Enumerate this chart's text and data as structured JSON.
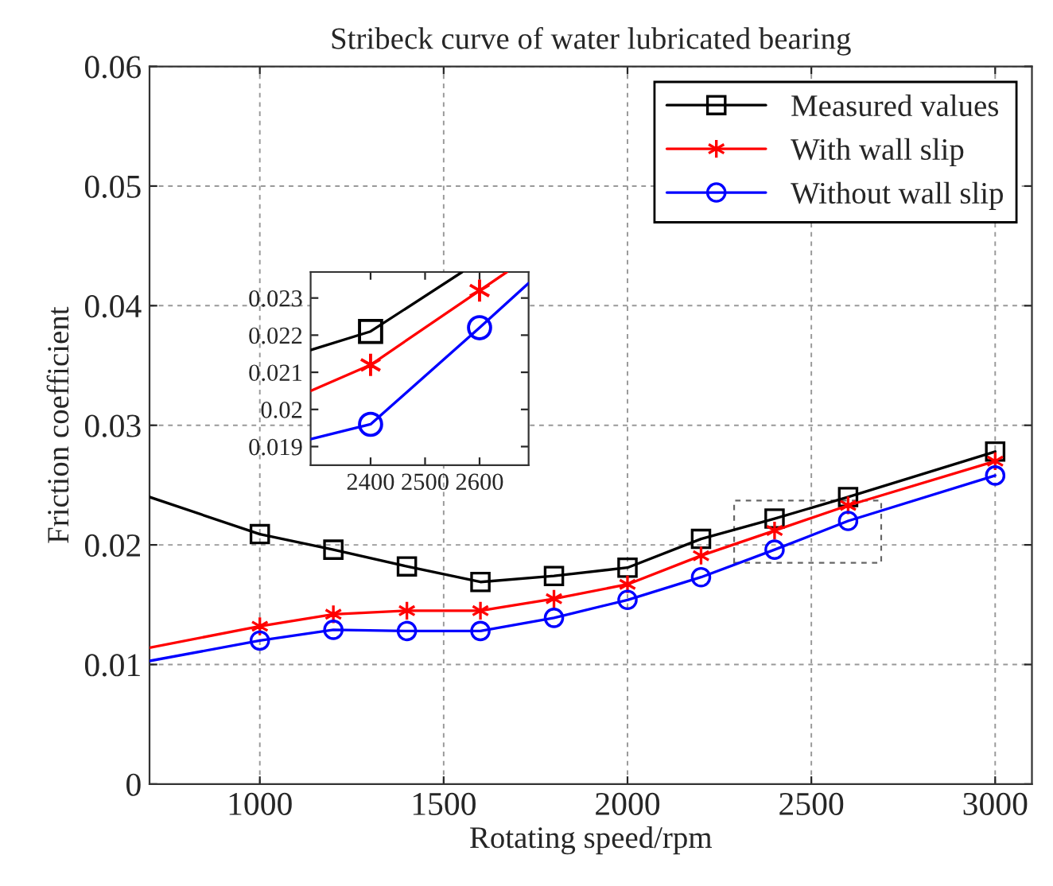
{
  "chart_data": [
    {
      "type": "line",
      "title": "Stribeck curve of water lubricated bearing",
      "xlabel": "Rotating speed/rpm",
      "ylabel": "Friction coefficient",
      "xlim": [
        700,
        3100
      ],
      "ylim": [
        0,
        0.06
      ],
      "xticks": [
        1000,
        1500,
        2000,
        2500,
        3000
      ],
      "yticks": [
        0,
        0.01,
        0.02,
        0.03,
        0.04,
        0.05,
        0.06
      ],
      "grid": true,
      "legend": "top right",
      "line_style": "solid",
      "series": [
        {
          "name": "Measured values",
          "color": "#000000",
          "marker": "square",
          "x": [
            1000,
            1200,
            1400,
            1600,
            1800,
            2000,
            2200,
            2400,
            2600,
            3000
          ],
          "values": [
            0.0209,
            0.0196,
            0.0182,
            0.0169,
            0.0174,
            0.0181,
            0.0205,
            0.0222,
            0.024,
            0.0278
          ]
        },
        {
          "name": "With wall slip",
          "color": "#ff0000",
          "marker": "cross",
          "x": [
            1000,
            1200,
            1400,
            1600,
            1800,
            2000,
            2200,
            2400,
            2600,
            3000
          ],
          "values": [
            0.0132,
            0.0142,
            0.0145,
            0.0145,
            0.0155,
            0.0167,
            0.0191,
            0.0212,
            0.0233,
            0.027
          ]
        },
        {
          "name": "Without wall slip",
          "color": "#0000ff",
          "marker": "circle",
          "x": [
            1000,
            1200,
            1400,
            1600,
            1800,
            2000,
            2200,
            2400,
            2600,
            3000
          ],
          "values": [
            0.012,
            0.0129,
            0.0128,
            0.0128,
            0.0139,
            0.0154,
            0.0173,
            0.0196,
            0.022,
            0.0258
          ]
        },
        {
          "color": "#000000",
          "marker": "none",
          "x": [
            700,
            1000
          ],
          "values": [
            0.024,
            0.0209
          ]
        },
        {
          "color": "#ff0000",
          "marker": "none",
          "x": [
            700,
            1000
          ],
          "values": [
            0.0114,
            0.0132
          ]
        },
        {
          "color": "#0000ff",
          "marker": "none",
          "x": [
            700,
            1000
          ],
          "values": [
            0.0103,
            0.012
          ]
        }
      ]
    },
    {
      "type": "line",
      "xlim": [
        2290,
        2690
      ],
      "ylim": [
        0.0185,
        0.0237
      ],
      "xticks": [
        2400,
        2500,
        2600
      ],
      "yticks": [
        0.019,
        0.02,
        0.021,
        0.022,
        0.023
      ],
      "grid": false,
      "legend": false,
      "line_style": "solid",
      "series": [
        {
          "color": "#000000",
          "marker": "none",
          "x": [
            2290,
            2400,
            2568
          ],
          "values": [
            0.0216,
            0.0221,
            0.0237
          ]
        },
        {
          "color": "#ff0000",
          "marker": "none",
          "x": [
            2290,
            2400,
            2600,
            2650
          ],
          "values": [
            0.0205,
            0.0212,
            0.0232,
            0.0237
          ]
        },
        {
          "color": "#0000ff",
          "marker": "none",
          "x": [
            2290,
            2400,
            2600,
            2690
          ],
          "values": [
            0.0192,
            0.0196,
            0.0222,
            0.0234
          ]
        },
        {
          "type": "scatter",
          "color": "#000000",
          "marker": "square",
          "x": [
            2400
          ],
          "values": [
            0.0221
          ]
        },
        {
          "type": "scatter",
          "color": "#ff0000",
          "marker": "cross",
          "x": [
            2400,
            2600
          ],
          "values": [
            0.0212,
            0.0232
          ]
        },
        {
          "type": "scatter",
          "color": "#0000ff",
          "marker": "circle",
          "x": [
            2400,
            2600
          ],
          "values": [
            0.0196,
            0.0222
          ]
        }
      ]
    }
  ]
}
